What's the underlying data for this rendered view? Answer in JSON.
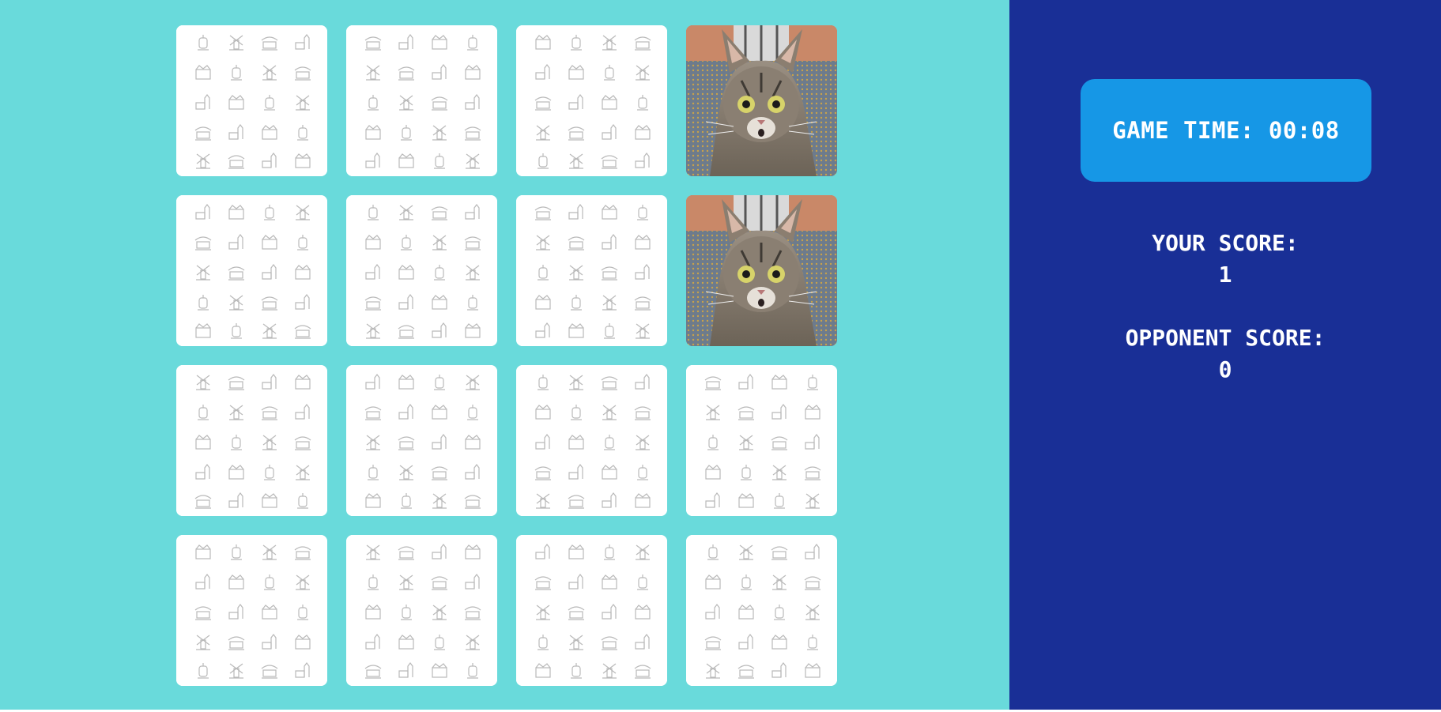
{
  "colors": {
    "board_background": "#69dadb",
    "panel_background": "#192f96",
    "timer_background": "#1697e6",
    "card_back": "#ffffff",
    "card_pattern": "#b9b9b9",
    "text": "#ffffff"
  },
  "timer": {
    "label": "GAME TIME:",
    "value": "00:08"
  },
  "scores": {
    "you": {
      "label": "YOUR SCORE:",
      "value": "1"
    },
    "opponent": {
      "label": "OPPONENT SCORE:",
      "value": "0"
    }
  },
  "board": {
    "rows": 4,
    "columns": 4,
    "cards": [
      {
        "state": "face-down"
      },
      {
        "state": "face-down"
      },
      {
        "state": "face-down"
      },
      {
        "state": "face-up",
        "image": "cat-photo"
      },
      {
        "state": "face-down"
      },
      {
        "state": "face-down"
      },
      {
        "state": "face-down"
      },
      {
        "state": "face-up",
        "image": "cat-photo"
      },
      {
        "state": "face-down"
      },
      {
        "state": "face-down"
      },
      {
        "state": "face-down"
      },
      {
        "state": "face-down"
      },
      {
        "state": "face-down"
      },
      {
        "state": "face-down"
      },
      {
        "state": "face-down"
      },
      {
        "state": "face-down"
      }
    ]
  }
}
